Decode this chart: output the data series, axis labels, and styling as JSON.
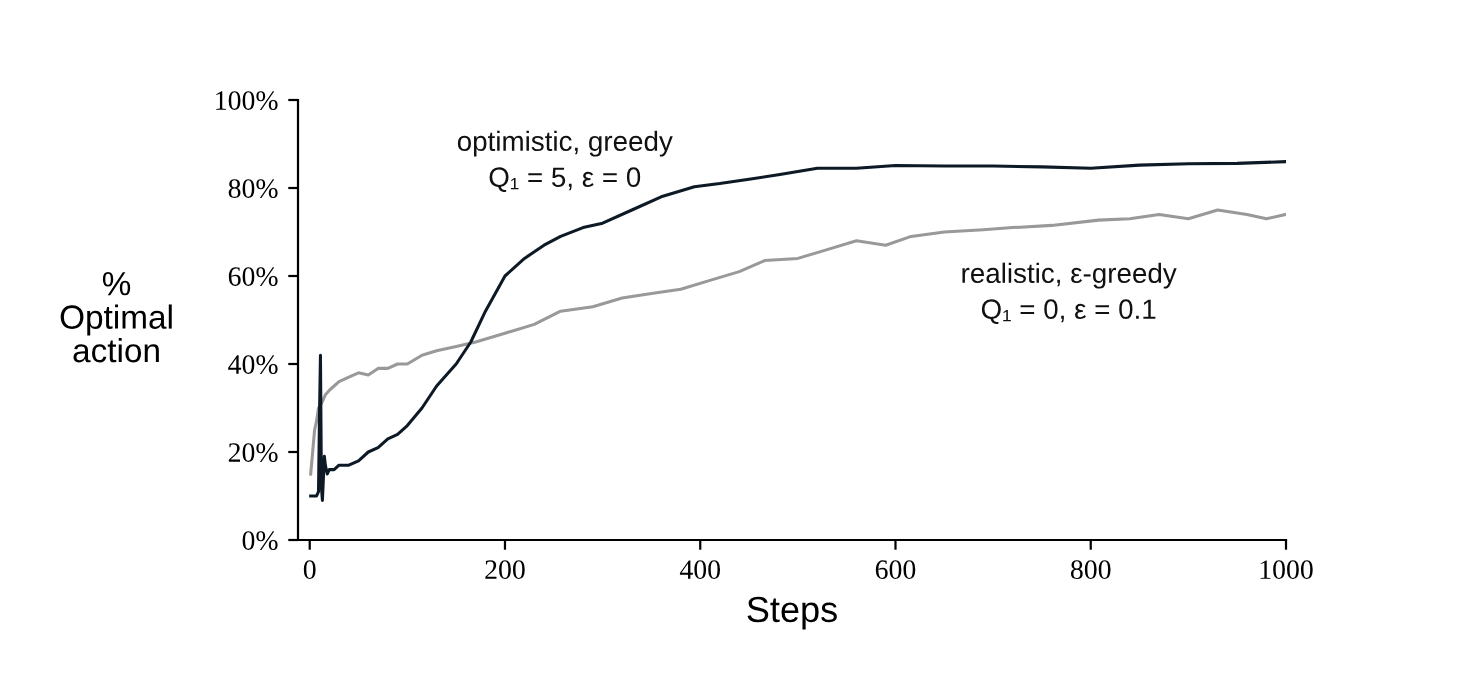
{
  "chart_data": {
    "type": "line",
    "xlabel": "Steps",
    "ylabel": "%\nOptimal\naction",
    "xlim": [
      -12,
      1000
    ],
    "xticks": [
      0,
      200,
      400,
      600,
      800,
      1000
    ],
    "ylim": [
      0,
      100
    ],
    "yticks": [
      {
        "value": 0,
        "label": "0%"
      },
      {
        "value": 20,
        "label": "20%"
      },
      {
        "value": 40,
        "label": "40%"
      },
      {
        "value": 60,
        "label": "60%"
      },
      {
        "value": 80,
        "label": "80%"
      },
      {
        "value": 100,
        "label": "100%"
      }
    ],
    "grid": false,
    "legend": false,
    "marker": "none",
    "line_style": "solid",
    "series": [
      {
        "name": "realistic, ε-greedy\nQ₁ = 0, ε = 0.1",
        "color": "#999999",
        "x": [
          1,
          3,
          5,
          7,
          9,
          12,
          16,
          20,
          25,
          30,
          40,
          50,
          60,
          70,
          80,
          90,
          100,
          115,
          130,
          150,
          170,
          200,
          230,
          257,
          290,
          320,
          350,
          380,
          410,
          440,
          466,
          500,
          530,
          560,
          590,
          616,
          650,
          690,
          720,
          760,
          808,
          840,
          870,
          900,
          930,
          960,
          980,
          1000
        ],
        "values": [
          15,
          20,
          25,
          27,
          30,
          31,
          33,
          34,
          35,
          36,
          37,
          38,
          37.5,
          39,
          39,
          40,
          40,
          42,
          43,
          44,
          45,
          47,
          49,
          52,
          53,
          55,
          56,
          57,
          59,
          61,
          63.5,
          64,
          66,
          68,
          67,
          69,
          70,
          70.5,
          71,
          71.5,
          72.7,
          73,
          74,
          73,
          75,
          74,
          73,
          74
        ]
      },
      {
        "name": "optimistic, greedy\nQ₁ = 5, ε = 0",
        "color": "#0d1a26",
        "x": [
          1,
          3,
          5,
          7,
          9,
          10,
          11,
          12,
          13,
          14,
          15,
          16,
          18,
          20,
          25,
          30,
          40,
          50,
          60,
          70,
          80,
          90,
          100,
          115,
          130,
          150,
          165,
          180,
          200,
          220,
          240,
          257,
          280,
          300,
          330,
          360,
          394,
          420,
          450,
          480,
          520,
          560,
          600,
          650,
          700,
          750,
          800,
          850,
          900,
          950,
          1000
        ],
        "values": [
          10,
          10,
          10,
          10,
          11,
          28,
          42,
          12,
          9,
          14,
          19,
          17,
          15,
          16,
          16,
          17,
          17,
          18,
          20,
          21,
          23,
          24,
          26,
          30,
          35,
          40,
          45,
          52,
          60,
          64,
          67,
          69,
          71,
          72,
          75,
          78,
          80.3,
          81,
          82,
          83,
          84.5,
          84.5,
          85.1,
          85,
          85,
          84.8,
          84.5,
          85.2,
          85.5,
          85.6,
          86
        ]
      }
    ]
  }
}
